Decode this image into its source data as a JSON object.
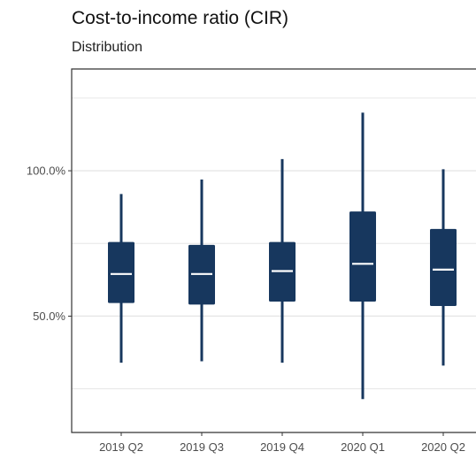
{
  "chart_data": {
    "type": "boxplot",
    "title": "Cost-to-income ratio (CIR)",
    "subtitle": "Distribution",
    "xlabel": "",
    "ylabel": "",
    "categories": [
      "2019 Q2",
      "2019 Q3",
      "2019 Q4",
      "2020 Q1",
      "2020 Q2"
    ],
    "series": [
      {
        "category": "2019 Q2",
        "min": 34.0,
        "q1": 54.5,
        "median": 64.5,
        "q3": 75.5,
        "max": 92.0
      },
      {
        "category": "2019 Q3",
        "min": 34.5,
        "q1": 54.0,
        "median": 64.5,
        "q3": 74.5,
        "max": 97.0
      },
      {
        "category": "2019 Q4",
        "min": 34.0,
        "q1": 55.0,
        "median": 65.5,
        "q3": 75.5,
        "max": 104.0
      },
      {
        "category": "2020 Q1",
        "min": 21.5,
        "q1": 55.0,
        "median": 68.0,
        "q3": 86.0,
        "max": 120.0
      },
      {
        "category": "2020 Q2",
        "min": 33.0,
        "q1": 53.5,
        "median": 66.0,
        "q3": 80.0,
        "max": 100.5
      }
    ],
    "ylim": [
      10,
      135
    ],
    "yticks": [
      {
        "value": 50,
        "label": "50.0%"
      },
      {
        "value": 100,
        "label": "100.0%"
      }
    ],
    "minor_gridlines": [
      25,
      75,
      125
    ],
    "grid": true,
    "colors": {
      "box": "#17375e",
      "median": "#ffffff",
      "grid": "#e6e6e6",
      "panel_border": "#333333"
    }
  }
}
